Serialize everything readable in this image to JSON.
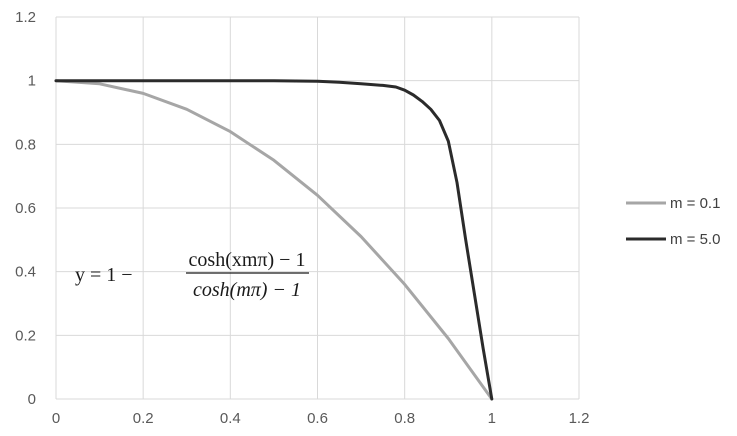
{
  "chart_data": {
    "type": "line",
    "title": "",
    "xlabel": "",
    "ylabel": "",
    "xlim": [
      0,
      1.2
    ],
    "ylim": [
      0,
      1.2
    ],
    "x_ticks": [
      "0",
      "0.2",
      "0.4",
      "0.6",
      "0.8",
      "1",
      "1.2"
    ],
    "y_ticks": [
      "0",
      "0.2",
      "0.4",
      "0.6",
      "0.8",
      "1",
      "1.2"
    ],
    "grid": true,
    "legend_position": "right",
    "annotation": {
      "lhs": "y = 1 −",
      "numerator": "cosh(xmπ) − 1",
      "denominator": "cosh(mπ) − 1"
    },
    "series": [
      {
        "name": "m = 0.1",
        "color": "#a6a6a6",
        "x": [
          0,
          0.1,
          0.2,
          0.3,
          0.4,
          0.5,
          0.6,
          0.7,
          0.8,
          0.9,
          1.0
        ],
        "y": [
          1.0,
          0.99,
          0.96,
          0.91,
          0.84,
          0.75,
          0.64,
          0.51,
          0.36,
          0.19,
          0.0
        ]
      },
      {
        "name": "m = 5.0",
        "color": "#2b2b2b",
        "x": [
          0,
          0.1,
          0.2,
          0.3,
          0.4,
          0.5,
          0.6,
          0.65,
          0.7,
          0.75,
          0.78,
          0.8,
          0.82,
          0.84,
          0.86,
          0.88,
          0.9,
          0.92,
          0.94,
          0.96,
          0.98,
          1.0
        ],
        "y": [
          1.0,
          1.0,
          1.0,
          1.0,
          1.0,
          1.0,
          0.998,
          0.995,
          0.99,
          0.985,
          0.98,
          0.97,
          0.955,
          0.935,
          0.91,
          0.875,
          0.81,
          0.68,
          0.5,
          0.33,
          0.16,
          0.0
        ]
      }
    ]
  }
}
